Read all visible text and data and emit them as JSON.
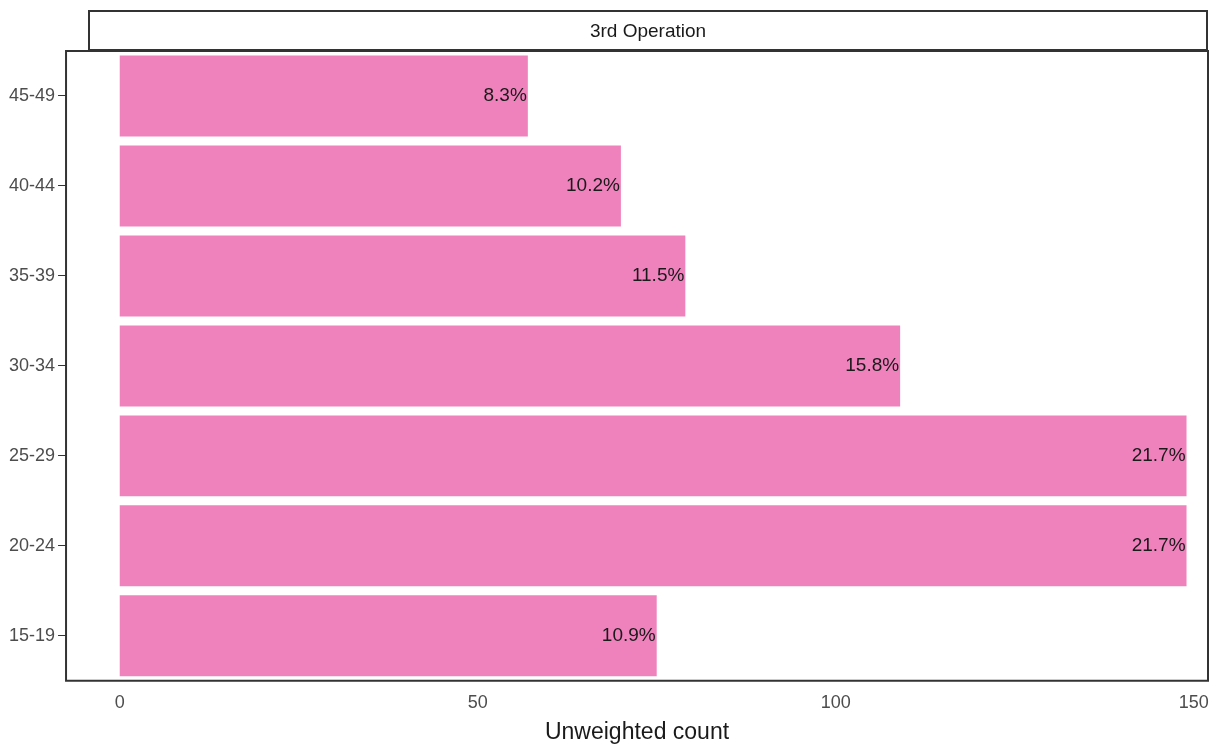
{
  "chart_data": {
    "type": "bar",
    "orientation": "horizontal",
    "title": "3rd Operation",
    "xlabel": "Unweighted count",
    "categories": [
      "45-49",
      "40-44",
      "35-39",
      "30-34",
      "25-29",
      "20-24",
      "15-19"
    ],
    "values": [
      57,
      70,
      79,
      109,
      149,
      149,
      75
    ],
    "annotations": [
      {
        "text": "8.3%",
        "x": 57,
        "y": "45-49"
      },
      {
        "text": "10.2%",
        "x": 70,
        "y": "40-44"
      },
      {
        "text": "11.5%",
        "x": 79,
        "y": "35-39"
      },
      {
        "text": "15.8%",
        "x": 109,
        "y": "30-34"
      },
      {
        "text": "21.7%",
        "x": 149,
        "y": "25-29"
      },
      {
        "text": "21.7%",
        "x": 149,
        "y": "20-24"
      },
      {
        "text": "10.9%",
        "x": 75,
        "y": "15-19"
      }
    ],
    "color": "#ef82bc",
    "xlim": [
      -7.5,
      152
    ],
    "xticks": [
      0,
      50,
      100,
      150
    ],
    "grid": false,
    "legend": false
  }
}
